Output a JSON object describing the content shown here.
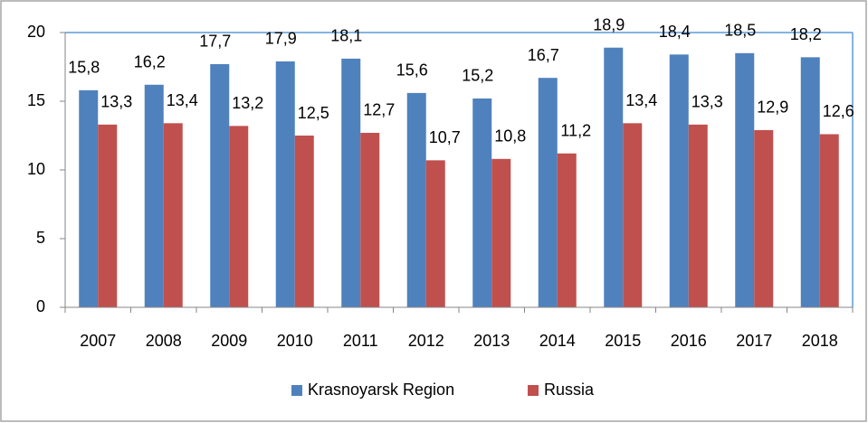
{
  "chart_data": {
    "type": "bar",
    "categories": [
      "2007",
      "2008",
      "2009",
      "2010",
      "2011",
      "2012",
      "2013",
      "2014",
      "2015",
      "2016",
      "2017",
      "2018"
    ],
    "series": [
      {
        "name": "Krasnoyarsk Region",
        "color": "#4f81bd",
        "values": [
          15.8,
          16.2,
          17.7,
          17.9,
          18.1,
          15.6,
          15.2,
          16.7,
          18.9,
          18.4,
          18.5,
          18.2
        ],
        "value_labels": [
          "15,8",
          "16,2",
          "17,7",
          "17,9",
          "18,1",
          "15,6",
          "15,2",
          "16,7",
          "18,9",
          "18,4",
          "18,5",
          "18,2"
        ]
      },
      {
        "name": "Russia",
        "color": "#c0504d",
        "values": [
          13.3,
          13.4,
          13.2,
          12.5,
          12.7,
          10.7,
          10.8,
          11.2,
          13.4,
          13.3,
          12.9,
          12.6
        ],
        "value_labels": [
          "13,3",
          "13,4",
          "13,2",
          "12,5",
          "12,7",
          "10,7",
          "10,8",
          "11,2",
          "13,4",
          "13,3",
          "12,9",
          "12,6"
        ]
      }
    ],
    "ylim": [
      0,
      20
    ],
    "yticks": [
      0,
      5,
      10,
      15,
      20
    ],
    "grid": false,
    "legend": "bottom"
  }
}
